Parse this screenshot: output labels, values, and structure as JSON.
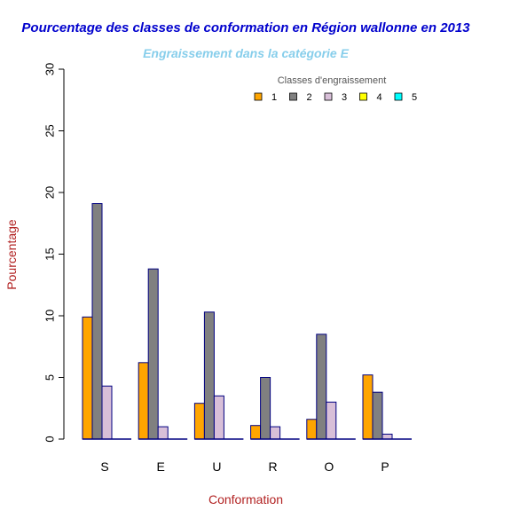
{
  "chart_data": {
    "type": "bar",
    "title": "Pourcentage des classes de conformation en Région wallonne en 2013",
    "subtitle": "Engraissement dans la catégorie E",
    "xlabel": "Conformation",
    "ylabel": "Pourcentage",
    "ylim": [
      0,
      30
    ],
    "yticks": [
      "0",
      "5",
      "10",
      "15",
      "20",
      "25",
      "30"
    ],
    "grid": false,
    "legend_title": "Classes d'engraissement",
    "legend_placement": "top-right",
    "categories": [
      "S",
      "E",
      "U",
      "R",
      "O",
      "P"
    ],
    "series": [
      {
        "name": "1",
        "color": "#FFA500",
        "values": [
          9.9,
          6.2,
          2.9,
          1.1,
          1.6,
          5.2
        ]
      },
      {
        "name": "2",
        "color": "#808080",
        "values": [
          19.1,
          13.8,
          10.3,
          5.0,
          8.5,
          3.8
        ]
      },
      {
        "name": "3",
        "color": "#D8BFD8",
        "values": [
          4.3,
          1.0,
          3.5,
          1.0,
          3.0,
          0.4
        ]
      },
      {
        "name": "4",
        "color": "#FFFF00",
        "values": [
          0,
          0,
          0,
          0,
          0,
          0
        ]
      },
      {
        "name": "5",
        "color": "#00FFFF",
        "values": [
          0,
          0,
          0,
          0,
          0,
          0
        ]
      }
    ],
    "colors": {
      "title": "#0000CD",
      "subtitle": "#87CEEB",
      "axis_label": "#B22222",
      "bar_border": "#000080",
      "axis": "#000000"
    }
  }
}
